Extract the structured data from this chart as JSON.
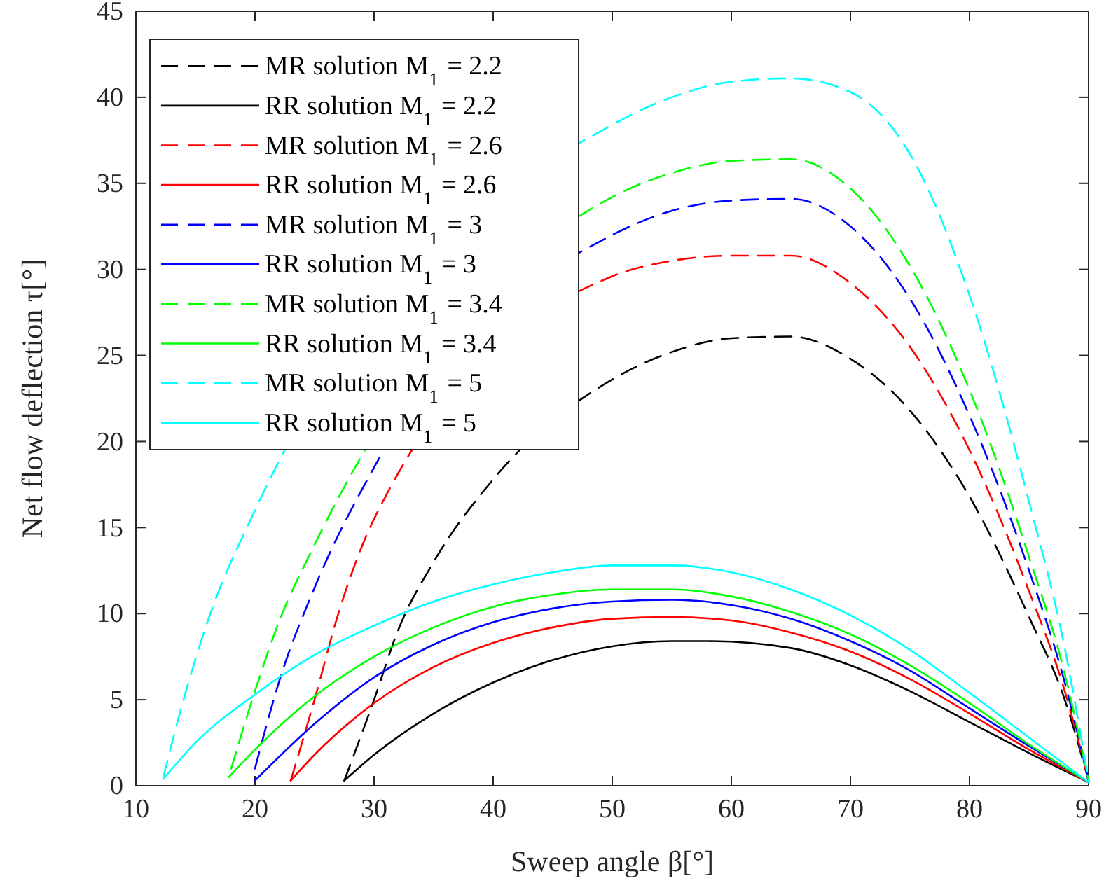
{
  "chart_data": {
    "type": "line",
    "xlabel": "Sweep angle β[°]",
    "ylabel": "Net flow deflection τ[°]",
    "xlim": [
      10,
      90
    ],
    "xticks": [
      10,
      20,
      30,
      40,
      50,
      60,
      70,
      80,
      90
    ],
    "ylim": [
      0,
      45
    ],
    "yticks": [
      0,
      5,
      10,
      15,
      20,
      25,
      30,
      35,
      40,
      45
    ],
    "grid": false,
    "legend": "top left",
    "marker": "none",
    "series": [
      {
        "name": "MR solution M$_{1}$ = 2.2",
        "color": "#000000",
        "line_style": "dashed",
        "x": [
          27.5,
          30,
          32,
          35,
          40,
          45,
          50,
          55,
          60,
          65,
          70,
          75,
          80,
          85,
          88,
          90
        ],
        "values": [
          0.3,
          5,
          9,
          13,
          17.8,
          null,
          23.6,
          25.2,
          26,
          26.1,
          24.8,
          21.8,
          16.8,
          9.8,
          5,
          0.3
        ]
      },
      {
        "name": "RR solution M$_{1}$ = 2.2",
        "color": "#000000",
        "line_style": "solid",
        "x": [
          27.5,
          30,
          35,
          40,
          45,
          50,
          55,
          58,
          65,
          70,
          75,
          80,
          85,
          90
        ],
        "values": [
          0.3,
          1.8,
          4.2,
          6,
          7.3,
          8.1,
          8.4,
          8.4,
          8,
          7,
          5.5,
          3.7,
          1.9,
          0.2
        ]
      },
      {
        "name": "MR solution M$_{1}$ = 2.6",
        "color": "#ff0000",
        "line_style": "dashed",
        "x": [
          23,
          25,
          27,
          30,
          35,
          40,
          45,
          50,
          55,
          60,
          65,
          70,
          75,
          80,
          85,
          88,
          90
        ],
        "values": [
          0.3,
          5,
          10,
          15.5,
          null,
          null,
          null,
          29.6,
          30.5,
          30.8,
          30.8,
          29.2,
          25.5,
          19.5,
          11.3,
          5.5,
          0.3
        ]
      },
      {
        "name": "RR solution M$_{1}$ = 2.6",
        "color": "#ff0000",
        "line_style": "solid",
        "x": [
          23,
          25,
          30,
          35,
          40,
          45,
          50,
          55,
          60,
          65,
          70,
          75,
          80,
          85,
          90
        ],
        "values": [
          0.3,
          1.8,
          4.8,
          6.9,
          8.3,
          9.2,
          9.7,
          9.8,
          9.6,
          8.9,
          7.8,
          6.2,
          4.2,
          2.1,
          0.2
        ]
      },
      {
        "name": "MR solution M$_{1}$ = 3",
        "color": "#0000ff",
        "line_style": "dashed",
        "x": [
          20,
          22,
          25,
          30,
          35,
          40,
          45,
          50,
          55,
          60,
          65,
          70,
          75,
          80,
          85,
          88,
          90
        ],
        "values": [
          1,
          6,
          11.5,
          18.5,
          null,
          null,
          null,
          32,
          33.4,
          34,
          34.1,
          32.5,
          28.3,
          21.5,
          12.5,
          6,
          0.3
        ]
      },
      {
        "name": "RR solution M$_{1}$ = 3",
        "color": "#0000ff",
        "line_style": "solid",
        "x": [
          20,
          25,
          30,
          35,
          40,
          45,
          50,
          55,
          60,
          65,
          70,
          75,
          80,
          85,
          90
        ],
        "values": [
          0.3,
          3.6,
          6.3,
          8.2,
          9.5,
          10.3,
          10.7,
          10.8,
          10.5,
          9.7,
          8.4,
          6.7,
          4.5,
          2.3,
          0.2
        ]
      },
      {
        "name": "MR solution M$_{1}$ = 3.4",
        "color": "#00ff00",
        "line_style": "dashed",
        "x": [
          18,
          20,
          22,
          25,
          30,
          35,
          40,
          45,
          50,
          55,
          60,
          65,
          70,
          75,
          80,
          85,
          88,
          90
        ],
        "values": [
          1,
          5.5,
          9.5,
          14,
          null,
          null,
          null,
          null,
          34.2,
          35.6,
          36.3,
          36.4,
          34.7,
          30.2,
          23,
          13.3,
          6.5,
          0.3
        ]
      },
      {
        "name": "RR solution M$_{1}$ = 3.4",
        "color": "#00ff00",
        "line_style": "solid",
        "x": [
          17.8,
          20,
          25,
          30,
          35,
          40,
          45,
          50,
          55,
          60,
          65,
          70,
          75,
          80,
          85,
          90
        ],
        "values": [
          0.5,
          2.1,
          5.2,
          7.5,
          9.2,
          10.4,
          11.1,
          11.4,
          11.4,
          11,
          10.1,
          8.8,
          7,
          4.8,
          2.4,
          0.2
        ]
      },
      {
        "name": "MR solution M$_{1}$ = 5",
        "color": "#00ffff",
        "line_style": "dashed",
        "x": [
          12.3,
          14,
          16,
          20,
          25,
          30,
          35,
          40,
          45,
          50,
          55,
          60,
          65,
          70,
          75,
          80,
          85,
          88,
          90
        ],
        "values": [
          0.5,
          5,
          9.5,
          16,
          null,
          null,
          null,
          null,
          null,
          38.4,
          40,
          40.9,
          41.1,
          40.3,
          36.7,
          28.5,
          16.5,
          8,
          0.3
        ]
      },
      {
        "name": "RR solution M$_{1}$ = 5",
        "color": "#00ffff",
        "line_style": "solid",
        "x": [
          12.3,
          15,
          20,
          25,
          30,
          35,
          40,
          45,
          50,
          55,
          60,
          65,
          70,
          75,
          80,
          85,
          90
        ],
        "values": [
          0.4,
          2.5,
          5.3,
          7.6,
          9.3,
          10.7,
          11.7,
          12.4,
          12.8,
          12.8,
          12.4,
          11.4,
          9.9,
          7.9,
          5.4,
          2.8,
          0.2
        ]
      }
    ]
  }
}
